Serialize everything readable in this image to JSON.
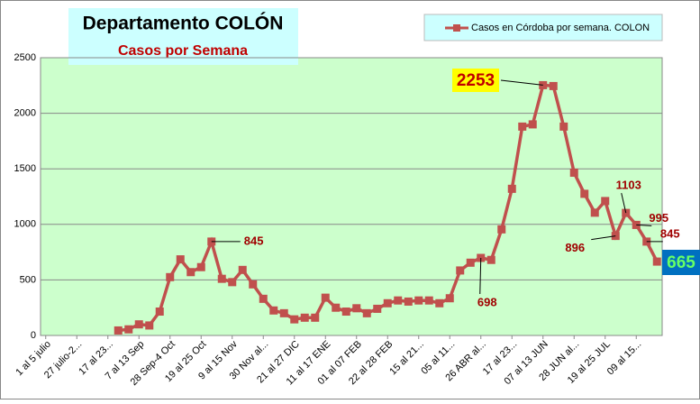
{
  "chart_data": {
    "type": "line",
    "title": "Departamento COLÓN",
    "subtitle": "Casos por Semana",
    "categories": [
      "1 al 5 julio",
      null,
      null,
      "27 julio-2...",
      null,
      null,
      "17 al 23...",
      null,
      null,
      "7 al 13 Sep",
      null,
      null,
      "28 Sep-4 Oct",
      null,
      null,
      "19 al 25 Oct",
      null,
      null,
      "9 al 15 Nov",
      null,
      null,
      "30 Nov al...",
      null,
      null,
      "21 al 27 DIC",
      null,
      null,
      "11 al 17 ENE",
      null,
      null,
      "01 al 07 FEB",
      null,
      null,
      "22 al 28 FEB",
      null,
      null,
      "15 al 21...",
      null,
      null,
      "05 al 11...",
      null,
      null,
      "26 ABR al...",
      null,
      null,
      "17 al 23...",
      null,
      null,
      "07 al 13 JUN",
      null,
      null,
      "28 JUN al...",
      null,
      null,
      "19 al 25 JUL",
      null,
      null,
      "09 al 15...",
      null,
      null
    ],
    "series": [
      {
        "name": "Casos en Córdoba por semana. COLON",
        "color": "#c0504d",
        "values": [
          null,
          null,
          null,
          null,
          null,
          null,
          null,
          45,
          55,
          100,
          90,
          215,
          525,
          685,
          570,
          615,
          845,
          510,
          480,
          590,
          460,
          330,
          225,
          200,
          145,
          160,
          160,
          340,
          250,
          215,
          245,
          200,
          240,
          290,
          315,
          305,
          315,
          315,
          290,
          335,
          585,
          655,
          698,
          680,
          955,
          1320,
          1880,
          1900,
          2253,
          2245,
          1880,
          1465,
          1275,
          1105,
          1210,
          896,
          1103,
          995,
          845,
          665
        ]
      }
    ],
    "ylim": [
      0,
      2500
    ],
    "yticks": [
      0,
      500,
      1000,
      1500,
      2000,
      2500
    ],
    "grid": true,
    "plot_background": "#ccffcc"
  }
}
